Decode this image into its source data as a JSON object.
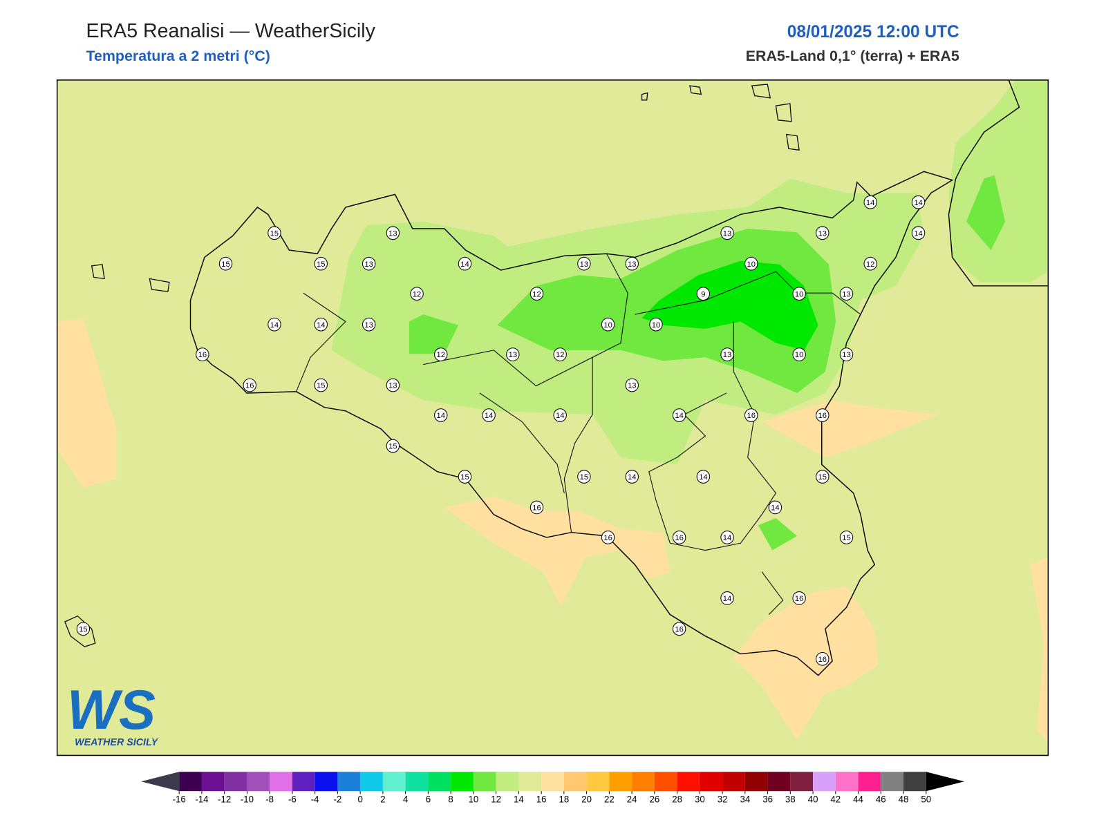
{
  "header": {
    "title": "ERA5 Reanalisi — WeatherSicily",
    "subtitle": "Temperatura a 2 metri (°C)",
    "datetime": "08/01/2025 12:00 UTC",
    "source": "ERA5-Land 0,1° (terra) + ERA5"
  },
  "logo": {
    "mark": "WS",
    "text": "WEATHER SICILY"
  },
  "stations": [
    15,
    13,
    15,
    15,
    13,
    14,
    12,
    14,
    14,
    13,
    16,
    12,
    16,
    15,
    13,
    14,
    14,
    15,
    15,
    12,
    13,
    13,
    10,
    13,
    12,
    14,
    16,
    15,
    13,
    16,
    14,
    13,
    10,
    9,
    10,
    10,
    13,
    10,
    14,
    16,
    14,
    16,
    14,
    14,
    13,
    14,
    14,
    14,
    12,
    13,
    13,
    16,
    15,
    15,
    14,
    16,
    16,
    16,
    15
  ],
  "colorbar": {
    "ticks": [
      -16,
      -14,
      -12,
      -10,
      -8,
      -6,
      -4,
      -2,
      0,
      2,
      4,
      6,
      8,
      10,
      12,
      14,
      16,
      18,
      20,
      22,
      24,
      26,
      28,
      30,
      32,
      34,
      36,
      38,
      40,
      42,
      44,
      46,
      48,
      50
    ],
    "colors": [
      "#3d0050",
      "#6a1090",
      "#8030a0",
      "#a050b8",
      "#e070e8",
      "#6020c0",
      "#0a10f0",
      "#1a80d8",
      "#10c8e8",
      "#60f0d0",
      "#10e0a0",
      "#00e060",
      "#00e800",
      "#70e840",
      "#c0ec80",
      "#e0ea98",
      "#ffe0a0",
      "#ffc870",
      "#ffc840",
      "#ffa000",
      "#ff8000",
      "#ff5000",
      "#ff1000",
      "#e00000",
      "#c00000",
      "#900000",
      "#700020",
      "#802040",
      "#d8a0f8",
      "#ff70c8",
      "#ff2090",
      "#808080",
      "#404040"
    ],
    "under": "#3a3a4a",
    "over": "#000000"
  }
}
